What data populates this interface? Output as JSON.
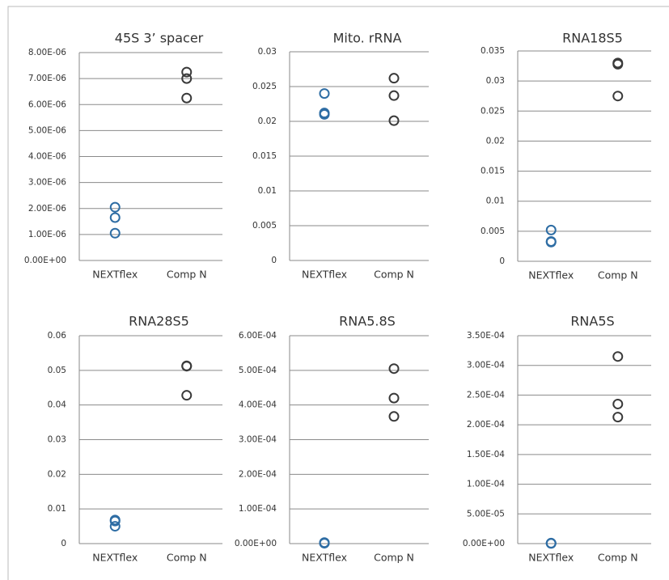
{
  "chart_data": [
    {
      "type": "dot",
      "title": "45S 3’ spacer",
      "categories": [
        "NEXTflex",
        "Comp N"
      ],
      "values": [
        [
          2.05e-06,
          1.65e-06,
          1.05e-06
        ],
        [
          7.25e-06,
          7e-06,
          6.25e-06
        ]
      ],
      "colors": [
        "#2e6da4",
        "#3a3a3a"
      ],
      "ylim": [
        0,
        8e-06
      ],
      "grid": true,
      "yticks": [
        {
          "value": 0,
          "label": "0.00E+00"
        },
        {
          "value": 1e-06,
          "label": "1.00E-06"
        },
        {
          "value": 2e-06,
          "label": "2.00E-06"
        },
        {
          "value": 3e-06,
          "label": "3.00E-06"
        },
        {
          "value": 4e-06,
          "label": "4.00E-06"
        },
        {
          "value": 5e-06,
          "label": "5.00E-06"
        },
        {
          "value": 6e-06,
          "label": "6.00E-06"
        },
        {
          "value": 7e-06,
          "label": "7.00E-06"
        },
        {
          "value": 8e-06,
          "label": "8.00E-06"
        }
      ]
    },
    {
      "type": "dot",
      "title": "Mito. rRNA",
      "categories": [
        "NEXTflex",
        "Comp N"
      ],
      "values": [
        [
          0.024,
          0.0212,
          0.021
        ],
        [
          0.0262,
          0.0237,
          0.0201
        ]
      ],
      "colors": [
        "#2e6da4",
        "#3a3a3a"
      ],
      "ylim": [
        0,
        0.03
      ],
      "grid": true,
      "yticks": [
        0,
        0.005,
        0.01,
        0.015,
        0.02,
        0.025,
        0.03
      ]
    },
    {
      "type": "dot",
      "title": "RNA18S5",
      "categories": [
        "NEXTflex",
        "Comp N"
      ],
      "values": [
        [
          0.0052,
          0.0033,
          0.0032
        ],
        [
          0.033,
          0.0328,
          0.0275
        ]
      ],
      "colors": [
        "#2e6da4",
        "#3a3a3a"
      ],
      "ylim": [
        0,
        0.035
      ],
      "grid": true,
      "yticks": [
        0,
        0.005,
        0.01,
        0.015,
        0.02,
        0.025,
        0.03,
        0.035
      ]
    },
    {
      "type": "dot",
      "title": "RNA28S5",
      "categories": [
        "NEXTflex",
        "Comp N"
      ],
      "values": [
        [
          0.0068,
          0.0065,
          0.005
        ],
        [
          0.0513,
          0.0512,
          0.0428
        ]
      ],
      "colors": [
        "#2e6da4",
        "#3a3a3a"
      ],
      "ylim": [
        0,
        0.06
      ],
      "grid": true,
      "yticks": [
        0,
        0.01,
        0.02,
        0.03,
        0.04,
        0.05,
        0.06
      ]
    },
    {
      "type": "dot",
      "title": "RNA5.8S",
      "categories": [
        "NEXTflex",
        "Comp N"
      ],
      "values": [
        [
          3e-06,
          2e-06,
          1e-06
        ],
        [
          0.000505,
          0.00042,
          0.000367
        ]
      ],
      "colors": [
        "#2e6da4",
        "#3a3a3a"
      ],
      "ylim": [
        0,
        0.0006
      ],
      "grid": true,
      "yticks": [
        {
          "value": 0,
          "label": "0.00E+00"
        },
        {
          "value": 0.0001,
          "label": "1.00E-04"
        },
        {
          "value": 0.0002,
          "label": "2.00E-04"
        },
        {
          "value": 0.0003,
          "label": "3.00E-04"
        },
        {
          "value": 0.0004,
          "label": "4.00E-04"
        },
        {
          "value": 0.0005,
          "label": "5.00E-04"
        },
        {
          "value": 0.0006,
          "label": "6.00E-04"
        }
      ]
    },
    {
      "type": "dot",
      "title": "RNA5S",
      "categories": [
        "NEXTflex",
        "Comp N"
      ],
      "values": [
        [
          8e-07,
          5e-07,
          3e-07
        ],
        [
          0.000315,
          0.000235,
          0.000213
        ]
      ],
      "colors": [
        "#2e6da4",
        "#3a3a3a"
      ],
      "ylim": [
        0,
        0.00035
      ],
      "grid": true,
      "yticks": [
        {
          "value": 0,
          "label": "0.00E+00"
        },
        {
          "value": 5e-05,
          "label": "5.00E-05"
        },
        {
          "value": 0.0001,
          "label": "1.00E-04"
        },
        {
          "value": 0.00015,
          "label": "1.50E-04"
        },
        {
          "value": 0.0002,
          "label": "2.00E-04"
        },
        {
          "value": 0.00025,
          "label": "2.50E-04"
        },
        {
          "value": 0.0003,
          "label": "3.00E-04"
        },
        {
          "value": 0.00035,
          "label": "3.50E-04"
        }
      ]
    }
  ]
}
